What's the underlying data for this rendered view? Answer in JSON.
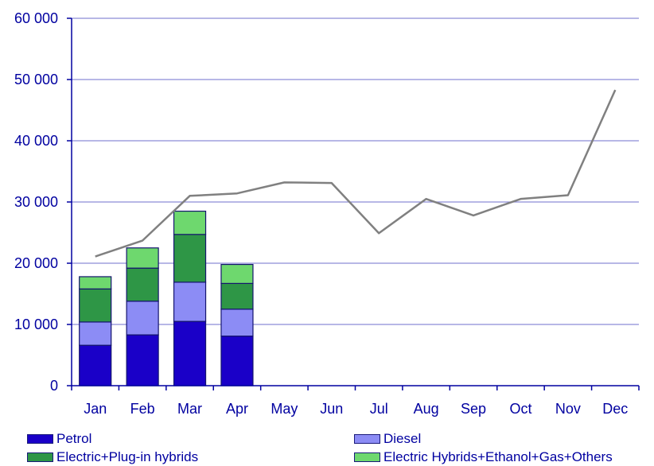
{
  "chart_data": {
    "type": "bar",
    "stacked": true,
    "categories": [
      "Jan",
      "Feb",
      "Mar",
      "Apr",
      "May",
      "Jun",
      "Jul",
      "Aug",
      "Sep",
      "Oct",
      "Nov",
      "Dec"
    ],
    "series": [
      {
        "name": "Petrol",
        "color": "#1a00c8",
        "values": [
          6600,
          8300,
          10500,
          8100,
          null,
          null,
          null,
          null,
          null,
          null,
          null,
          null
        ]
      },
      {
        "name": "Diesel",
        "color": "#8c8cf5",
        "values": [
          3800,
          5500,
          6400,
          4400,
          null,
          null,
          null,
          null,
          null,
          null,
          null,
          null
        ]
      },
      {
        "name": "Electric+Plug-in hybrids",
        "color": "#2e9646",
        "values": [
          5400,
          5400,
          7800,
          4200,
          null,
          null,
          null,
          null,
          null,
          null,
          null,
          null
        ]
      },
      {
        "name": "Electric Hybrids+Ethanol+Gas+Others",
        "color": "#6ed86e",
        "values": [
          2000,
          3300,
          3800,
          3100,
          null,
          null,
          null,
          null,
          null,
          null,
          null,
          null
        ]
      }
    ],
    "line_series": {
      "color": "#808080",
      "values": [
        21100,
        23700,
        31000,
        31400,
        33200,
        33100,
        24900,
        30500,
        27800,
        30500,
        31100,
        48300
      ]
    },
    "ylim": [
      0,
      60000
    ],
    "yticks": [
      "0",
      "10 000",
      "20 000",
      "30 000",
      "40 000",
      "50 000",
      "60 000"
    ],
    "ytick_values": [
      0,
      10000,
      20000,
      30000,
      40000,
      50000,
      60000
    ],
    "grid": true,
    "legend_position": "bottom"
  }
}
